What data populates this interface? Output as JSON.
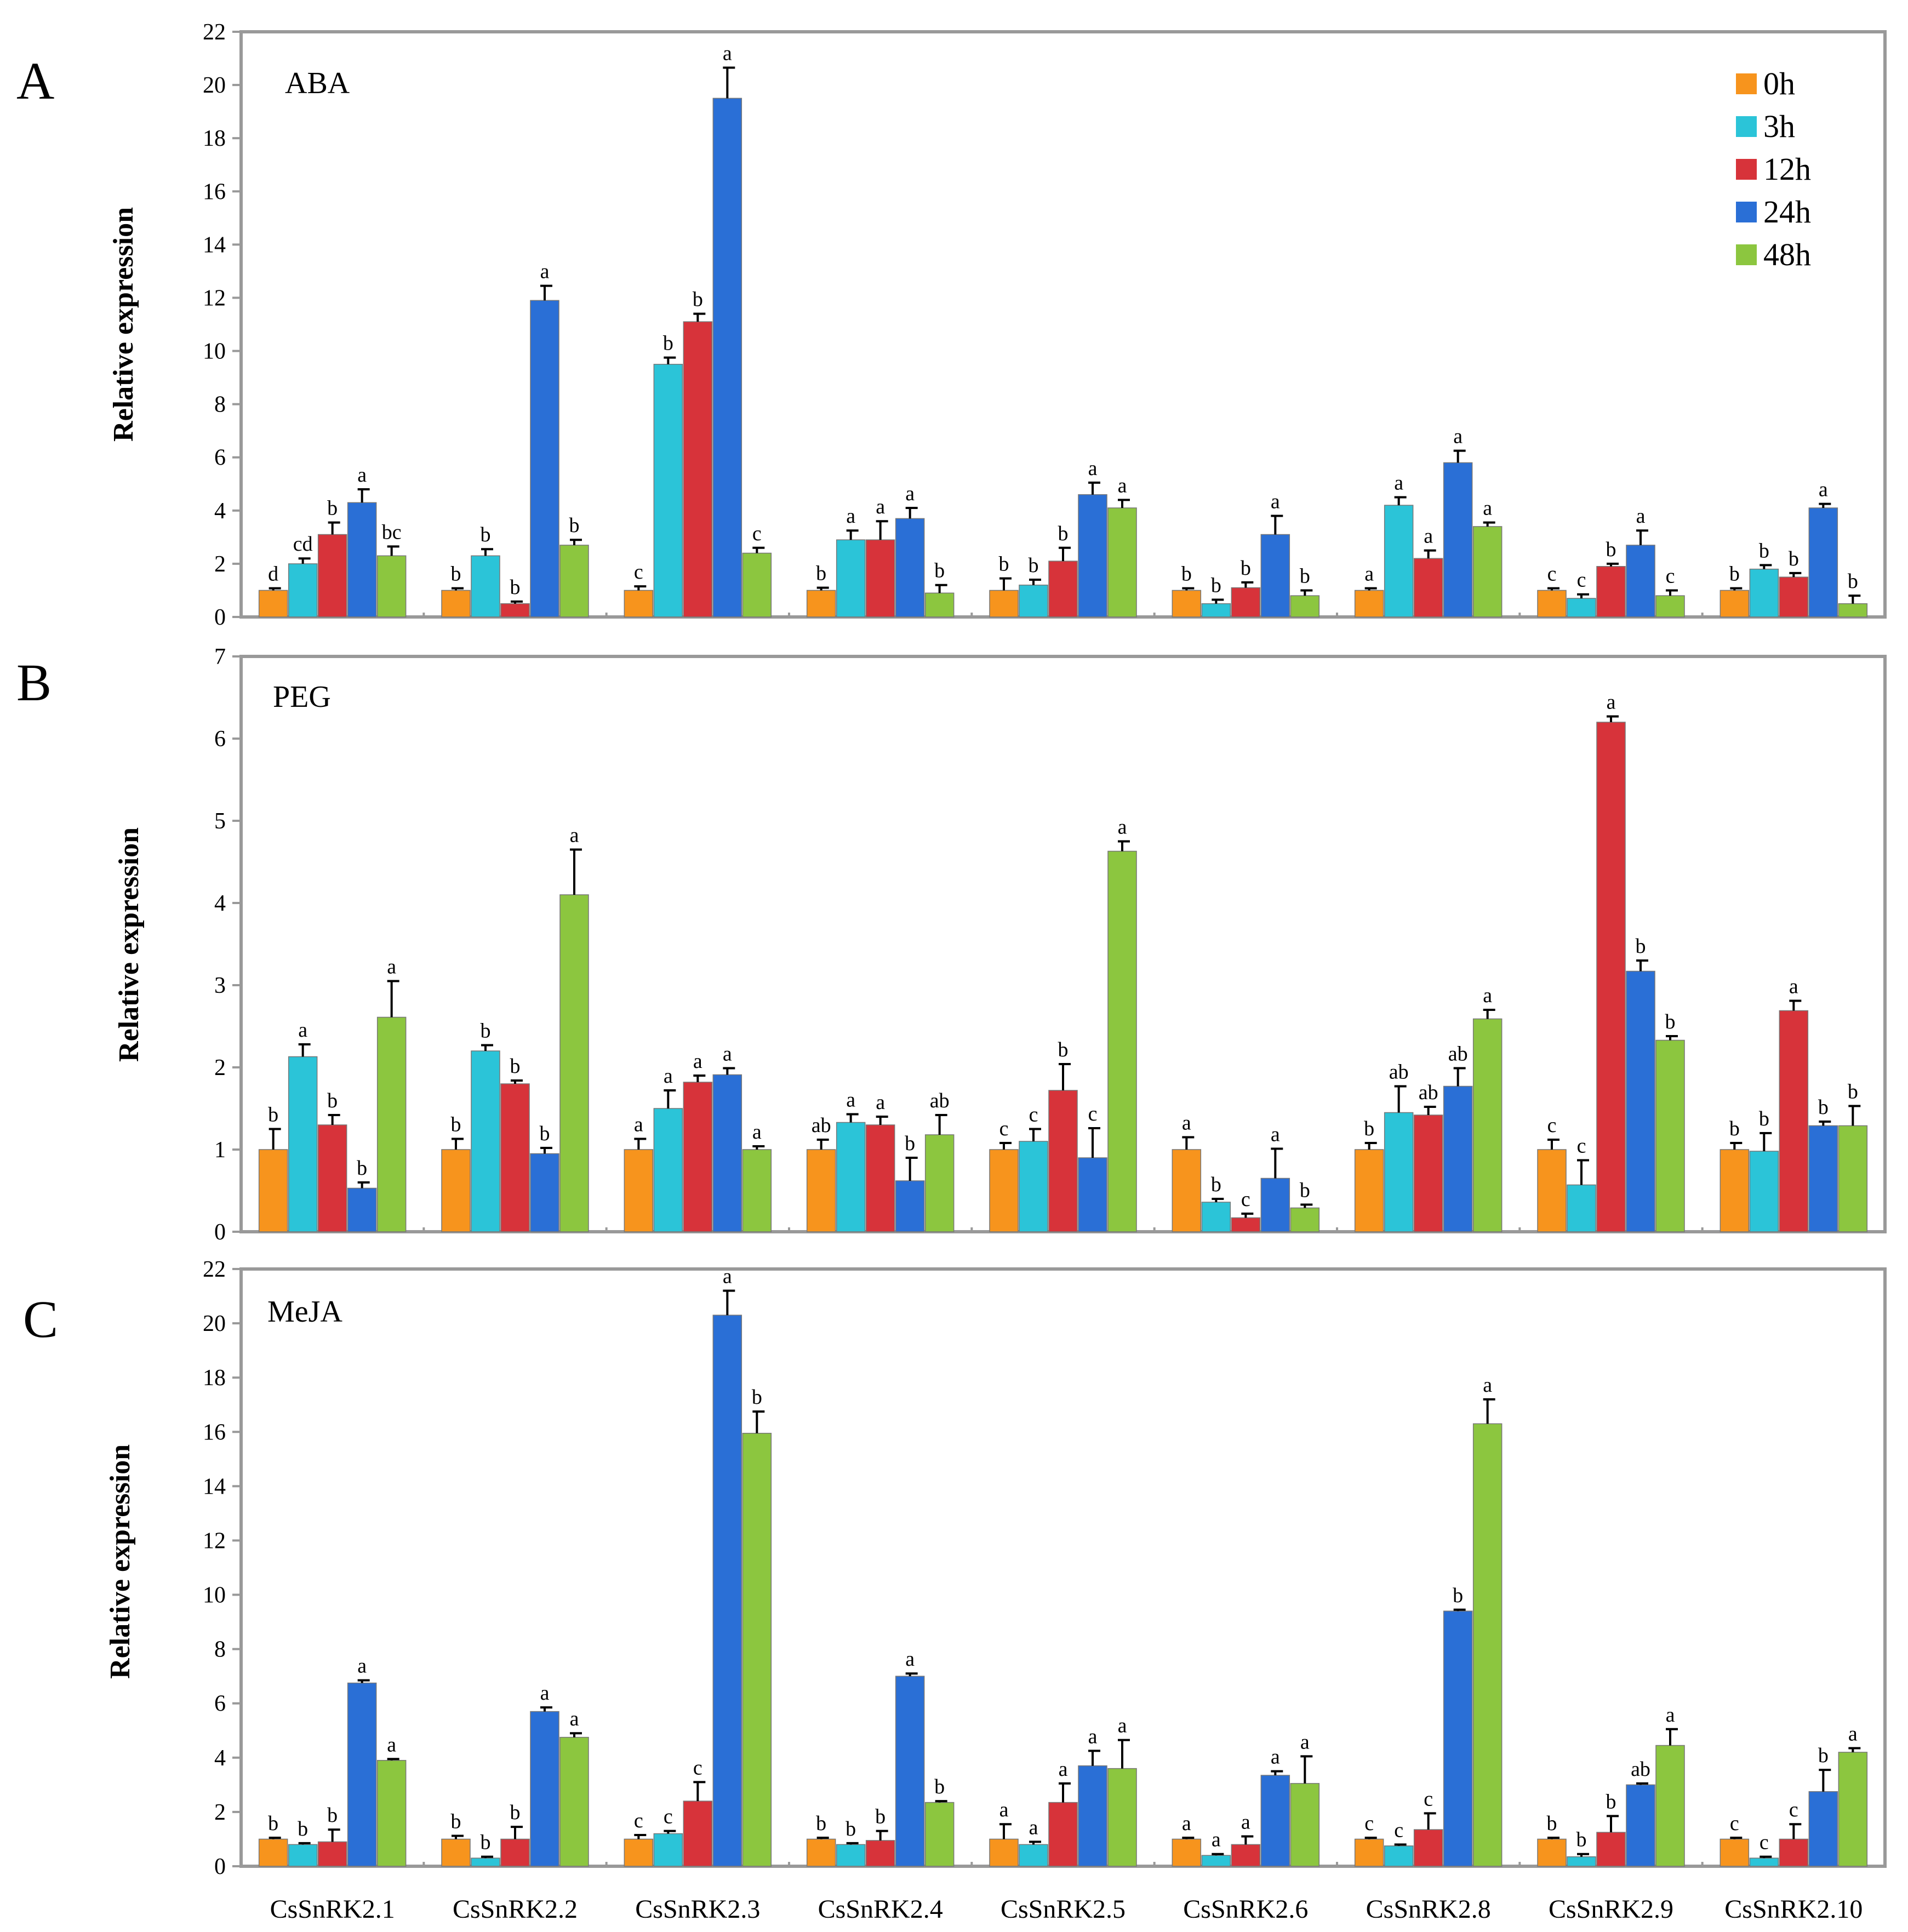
{
  "figure": {
    "legend_items": [
      "0h",
      "3h",
      "12h",
      "24h",
      "48h"
    ],
    "colors": [
      "#F7941D",
      "#2BC4D8",
      "#D7333A",
      "#2A6FD6",
      "#8CC63F"
    ]
  },
  "chart_data": [
    {
      "type": "bar",
      "panel_label": "A",
      "title": "ABA",
      "ylabel": "Relative  expression",
      "ylim": [
        0,
        22
      ],
      "yticks": [
        0,
        2,
        4,
        6,
        8,
        10,
        12,
        14,
        16,
        18,
        20,
        22
      ],
      "categories": [
        "CsSnRK2.1",
        "CsSnRK2.2",
        "CsSnRK2.3",
        "CsSnRK2.4",
        "CsSnRK2.5",
        "CsSnRK2.6",
        "CsSnRK2.8",
        "CsSnRK2.9",
        "CsSnRK2.10"
      ],
      "series": [
        {
          "name": "0h",
          "values": [
            1.0,
            1.0,
            1.0,
            1.0,
            1.0,
            1.0,
            1.0,
            1.0,
            1.0
          ],
          "errors": [
            0.08,
            0.08,
            0.15,
            0.1,
            0.45,
            0.08,
            0.08,
            0.08,
            0.08
          ],
          "letters": [
            "d",
            "b",
            "c",
            "b",
            "b",
            "b",
            "a",
            "c",
            "b"
          ]
        },
        {
          "name": "3h",
          "values": [
            2.0,
            2.3,
            9.5,
            2.9,
            1.2,
            0.5,
            4.2,
            0.7,
            1.8
          ],
          "errors": [
            0.2,
            0.25,
            0.25,
            0.35,
            0.2,
            0.15,
            0.3,
            0.15,
            0.15
          ],
          "letters": [
            "cd",
            "b",
            "b",
            "a",
            "b",
            "b",
            "a",
            "c",
            "b"
          ]
        },
        {
          "name": "12h",
          "values": [
            3.1,
            0.5,
            11.1,
            2.9,
            2.1,
            1.1,
            2.2,
            1.9,
            1.5
          ],
          "errors": [
            0.45,
            0.08,
            0.3,
            0.7,
            0.5,
            0.2,
            0.3,
            0.1,
            0.15
          ],
          "letters": [
            "b",
            "b",
            "b",
            "a",
            "b",
            "b",
            "a",
            "b",
            "b"
          ]
        },
        {
          "name": "24h",
          "values": [
            4.3,
            11.9,
            19.5,
            3.7,
            4.6,
            3.1,
            5.8,
            2.7,
            4.1
          ],
          "errors": [
            0.5,
            0.55,
            1.15,
            0.4,
            0.45,
            0.7,
            0.45,
            0.55,
            0.15
          ],
          "letters": [
            "a",
            "a",
            "a",
            "a",
            "a",
            "a",
            "a",
            "a",
            "a"
          ]
        },
        {
          "name": "48h",
          "values": [
            2.3,
            2.7,
            2.4,
            0.9,
            4.1,
            0.8,
            3.4,
            0.8,
            0.5
          ],
          "errors": [
            0.35,
            0.2,
            0.2,
            0.3,
            0.3,
            0.2,
            0.15,
            0.2,
            0.3
          ],
          "letters": [
            "bc",
            "b",
            "c",
            "b",
            "a",
            "b",
            "a",
            "c",
            "b"
          ]
        }
      ]
    },
    {
      "type": "bar",
      "panel_label": "B",
      "title": "PEG",
      "ylabel": "Relative expression",
      "ylim": [
        0,
        7
      ],
      "yticks": [
        0,
        1,
        2,
        3,
        4,
        5,
        6,
        7
      ],
      "categories": [
        "CsSnRK2.1",
        "CsSnRK2.2",
        "CsSnRK2.3",
        "CsSnRK2.4",
        "CsSnRK2.5",
        "CsSnRK2.6",
        "CsSnRK2.8",
        "CsSnRK2.9",
        "CsSnRK2.10"
      ],
      "series": [
        {
          "name": "0h",
          "values": [
            1.0,
            1.0,
            1.0,
            1.0,
            1.0,
            1.0,
            1.0,
            1.0,
            1.0
          ],
          "errors": [
            0.25,
            0.13,
            0.13,
            0.12,
            0.08,
            0.15,
            0.08,
            0.12,
            0.08
          ],
          "letters": [
            "b",
            "b",
            "a",
            "ab",
            "c",
            "a",
            "b",
            "c",
            "b"
          ]
        },
        {
          "name": "3h",
          "values": [
            2.13,
            2.2,
            1.5,
            1.33,
            1.1,
            0.36,
            1.45,
            0.57,
            0.98
          ],
          "errors": [
            0.15,
            0.07,
            0.22,
            0.1,
            0.15,
            0.04,
            0.32,
            0.3,
            0.22
          ],
          "letters": [
            "a",
            "b",
            "a",
            "a",
            "c",
            "b",
            "ab",
            "c",
            "b"
          ]
        },
        {
          "name": "12h",
          "values": [
            1.3,
            1.8,
            1.82,
            1.3,
            1.72,
            0.17,
            1.42,
            6.2,
            2.69
          ],
          "errors": [
            0.12,
            0.04,
            0.08,
            0.1,
            0.32,
            0.05,
            0.1,
            0.07,
            0.12
          ],
          "letters": [
            "b",
            "b",
            "a",
            "a",
            "b",
            "c",
            "ab",
            "a",
            "a"
          ]
        },
        {
          "name": "24h",
          "values": [
            0.53,
            0.95,
            1.91,
            0.62,
            0.9,
            0.65,
            1.77,
            3.17,
            1.29
          ],
          "errors": [
            0.07,
            0.07,
            0.08,
            0.28,
            0.36,
            0.36,
            0.22,
            0.13,
            0.05
          ],
          "letters": [
            "b",
            "b",
            "a",
            "b",
            "c",
            "a",
            "ab",
            "b",
            "b"
          ]
        },
        {
          "name": "48h",
          "values": [
            2.61,
            4.1,
            1.0,
            1.18,
            4.63,
            0.29,
            2.59,
            2.33,
            1.29
          ],
          "errors": [
            0.44,
            0.55,
            0.04,
            0.24,
            0.12,
            0.04,
            0.11,
            0.05,
            0.24
          ],
          "letters": [
            "a",
            "a",
            "a",
            "ab",
            "a",
            "b",
            "a",
            "b",
            "b"
          ]
        }
      ]
    },
    {
      "type": "bar",
      "panel_label": "C",
      "title": "MeJA",
      "ylabel": "Relative expression",
      "ylim": [
        0,
        22
      ],
      "yticks": [
        0,
        2,
        4,
        6,
        8,
        10,
        12,
        14,
        16,
        18,
        20,
        22
      ],
      "categories": [
        "CsSnRK2.1",
        "CsSnRK2.2",
        "CsSnRK2.3",
        "CsSnRK2.4",
        "CsSnRK2.5",
        "CsSnRK2.6",
        "CsSnRK2.8",
        "CsSnRK2.9",
        "CsSnRK2.10"
      ],
      "series": [
        {
          "name": "0h",
          "values": [
            1.0,
            1.0,
            1.0,
            1.0,
            1.0,
            1.0,
            1.0,
            1.0,
            1.0
          ],
          "errors": [
            0.05,
            0.12,
            0.15,
            0.05,
            0.55,
            0.05,
            0.05,
            0.05,
            0.05
          ],
          "letters": [
            "b",
            "b",
            "c",
            "b",
            "a",
            "a",
            "c",
            "b",
            "c"
          ]
        },
        {
          "name": "3h",
          "values": [
            0.8,
            0.3,
            1.2,
            0.8,
            0.8,
            0.4,
            0.75,
            0.35,
            0.3
          ],
          "errors": [
            0.05,
            0.05,
            0.1,
            0.05,
            0.1,
            0.05,
            0.05,
            0.1,
            0.05
          ],
          "letters": [
            "b",
            "b",
            "c",
            "b",
            "a",
            "a",
            "c",
            "b",
            "c"
          ]
        },
        {
          "name": "12h",
          "values": [
            0.9,
            1.0,
            2.4,
            0.95,
            2.35,
            0.8,
            1.35,
            1.25,
            1.0
          ],
          "errors": [
            0.45,
            0.45,
            0.7,
            0.35,
            0.7,
            0.3,
            0.6,
            0.6,
            0.55
          ],
          "letters": [
            "b",
            "b",
            "c",
            "b",
            "a",
            "a",
            "c",
            "b",
            "c"
          ]
        },
        {
          "name": "24h",
          "values": [
            6.75,
            5.7,
            20.3,
            7.0,
            3.7,
            3.35,
            9.4,
            3.0,
            2.75
          ],
          "errors": [
            0.1,
            0.15,
            0.9,
            0.1,
            0.55,
            0.15,
            0.05,
            0.05,
            0.8
          ],
          "letters": [
            "a",
            "a",
            "a",
            "a",
            "a",
            "a",
            "b",
            "ab",
            "b"
          ]
        },
        {
          "name": "48h",
          "values": [
            3.9,
            4.75,
            15.95,
            2.35,
            3.6,
            3.05,
            16.3,
            4.45,
            4.2
          ],
          "errors": [
            0.05,
            0.15,
            0.8,
            0.05,
            1.05,
            1.0,
            0.9,
            0.6,
            0.15
          ],
          "letters": [
            "a",
            "a",
            "b",
            "b",
            "a",
            "a",
            "a",
            "a",
            "a"
          ]
        }
      ]
    }
  ]
}
